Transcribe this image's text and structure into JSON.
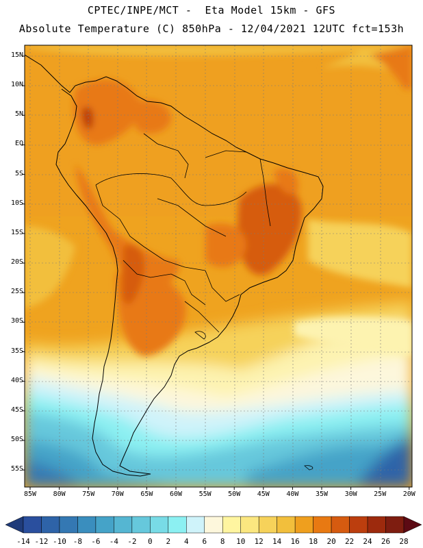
{
  "header": {
    "line1": "CPTEC/INPE/MCT -  Eta Model 15km - GFS",
    "line2": "Absolute Temperature (C) 850hPa - 12/04/2021 12UTC fct=153h"
  },
  "axes": {
    "lat_labels": [
      "15N",
      "10N",
      "5N",
      "EQ",
      "5S",
      "10S",
      "15S",
      "20S",
      "25S",
      "30S",
      "35S",
      "40S",
      "45S",
      "50S",
      "55S"
    ],
    "lon_labels": [
      "85W",
      "80W",
      "75W",
      "70W",
      "65W",
      "60W",
      "55W",
      "50W",
      "45W",
      "40W",
      "35W",
      "30W",
      "25W",
      "20W"
    ]
  },
  "colorbar": {
    "labels": [
      "-14",
      "-12",
      "-10",
      "-8",
      "-6",
      "-4",
      "-2",
      "0",
      "2",
      "4",
      "6",
      "8",
      "10",
      "12",
      "14",
      "16",
      "18",
      "20",
      "22",
      "24",
      "26",
      "28"
    ],
    "colors": [
      "#2a4f9e",
      "#2e63a8",
      "#3478b3",
      "#3a8ebe",
      "#45a3c8",
      "#55b6d2",
      "#66c8dc",
      "#78dbe6",
      "#8cf0f2",
      "#cff3fa",
      "#fdf7dc",
      "#fff5a0",
      "#fbe780",
      "#f6d25a",
      "#f2bf3c",
      "#ef9f1e",
      "#e87912",
      "#d65b10",
      "#bc3e0e",
      "#9d2a0d",
      "#7e1d10"
    ],
    "low_color": "#1f3b7a",
    "high_color": "#5c0a14"
  }
}
